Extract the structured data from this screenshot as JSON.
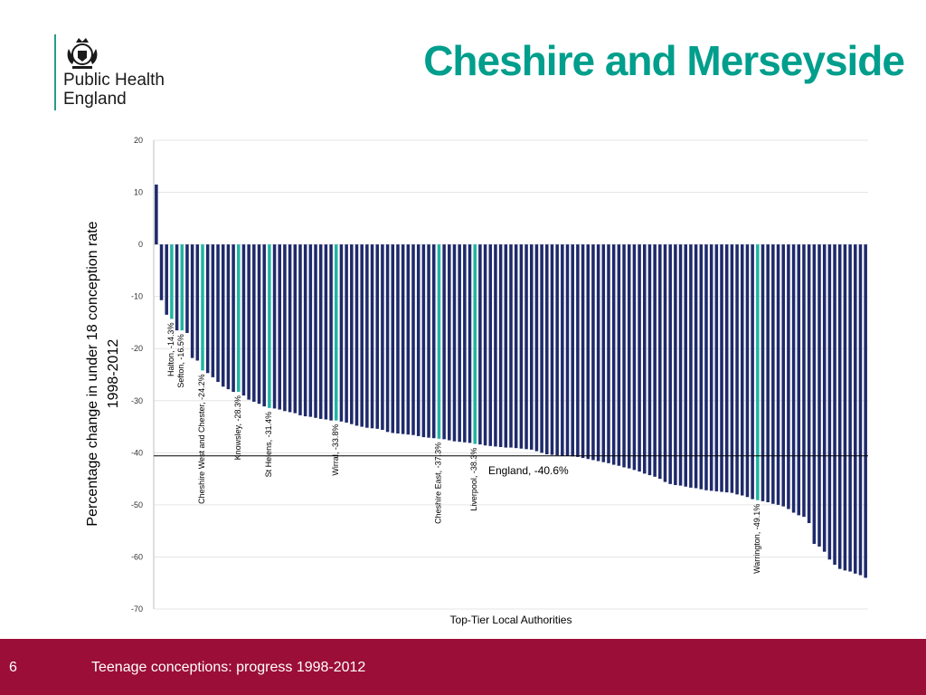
{
  "header": {
    "logo_line1": "Public Health",
    "logo_line2": "England",
    "title": "Cheshire and Merseyside"
  },
  "footer": {
    "slide_number": "6",
    "text": "Teenage conceptions: progress 1998-2012"
  },
  "colors": {
    "bar": "#1f2a6b",
    "highlight": "#22b5a3",
    "title": "#009e8c",
    "footer": "#9b0e37",
    "logo_accent": "#2a9a8c"
  },
  "chart_data": {
    "type": "bar",
    "title": "",
    "xlabel": "Top-Tier Local Authorities",
    "ylabel_line1": "Percentage change in under 18 conception rate",
    "ylabel_line2": "1998-2012",
    "ylim": [
      -70,
      20
    ],
    "yticks": [
      20,
      10,
      0,
      -10,
      -20,
      -30,
      -40,
      -50,
      -60,
      -70
    ],
    "grid": true,
    "values": [
      11.5,
      -10.7,
      -13.5,
      -14.3,
      -16.5,
      -16.5,
      -17.0,
      -21.8,
      -22.3,
      -24.2,
      -24.7,
      -25.5,
      -26.4,
      -27.3,
      -27.8,
      -28.3,
      -28.3,
      -29.0,
      -29.8,
      -30.2,
      -30.6,
      -31.1,
      -31.4,
      -31.5,
      -31.7,
      -32.0,
      -32.2,
      -32.4,
      -32.8,
      -33.0,
      -33.1,
      -33.3,
      -33.5,
      -33.6,
      -33.8,
      -33.8,
      -34.0,
      -34.2,
      -34.5,
      -34.8,
      -35.0,
      -35.2,
      -35.3,
      -35.4,
      -35.6,
      -36.0,
      -36.2,
      -36.3,
      -36.4,
      -36.5,
      -36.6,
      -36.8,
      -37.0,
      -37.1,
      -37.2,
      -37.3,
      -37.4,
      -37.6,
      -37.8,
      -37.9,
      -38.0,
      -38.1,
      -38.3,
      -38.4,
      -38.6,
      -38.7,
      -38.8,
      -38.9,
      -39.0,
      -39.0,
      -39.1,
      -39.2,
      -39.3,
      -39.4,
      -39.7,
      -40.0,
      -40.3,
      -40.4,
      -40.5,
      -40.6,
      -40.6,
      -40.7,
      -40.8,
      -41.0,
      -41.2,
      -41.4,
      -41.6,
      -41.8,
      -42.0,
      -42.3,
      -42.5,
      -42.8,
      -43.0,
      -43.3,
      -43.6,
      -44.0,
      -44.3,
      -44.6,
      -45.0,
      -45.6,
      -46.0,
      -46.2,
      -46.3,
      -46.5,
      -46.7,
      -46.8,
      -47.0,
      -47.2,
      -47.3,
      -47.4,
      -47.5,
      -47.6,
      -47.7,
      -48.0,
      -48.2,
      -48.5,
      -48.9,
      -49.1,
      -49.3,
      -49.5,
      -49.8,
      -50.0,
      -50.3,
      -50.8,
      -51.5,
      -52.0,
      -52.3,
      -53.5,
      -57.5,
      -58.0,
      -59.0,
      -60.5,
      -61.5,
      -62.3,
      -62.6,
      -62.8,
      -63.2,
      -63.5,
      -64.0
    ],
    "reference_line": {
      "value": -40.6,
      "label": "England, -40.6%"
    },
    "highlights": [
      {
        "index": 3,
        "label": "Halton, -14.3%"
      },
      {
        "index": 5,
        "label": "Sefton, -16.5%"
      },
      {
        "index": 9,
        "label": "Cheshire West and Chester, -24.2%"
      },
      {
        "index": 16,
        "label": "Knowsley, -28.3%"
      },
      {
        "index": 22,
        "label": "St Helens, -31.4%"
      },
      {
        "index": 35,
        "label": "Wirral, -33.8%"
      },
      {
        "index": 55,
        "label": "Cheshire East, -37.3%"
      },
      {
        "index": 62,
        "label": "Liverpool, -38.3%"
      },
      {
        "index": 117,
        "label": "Warrington, -49.1%"
      }
    ]
  }
}
